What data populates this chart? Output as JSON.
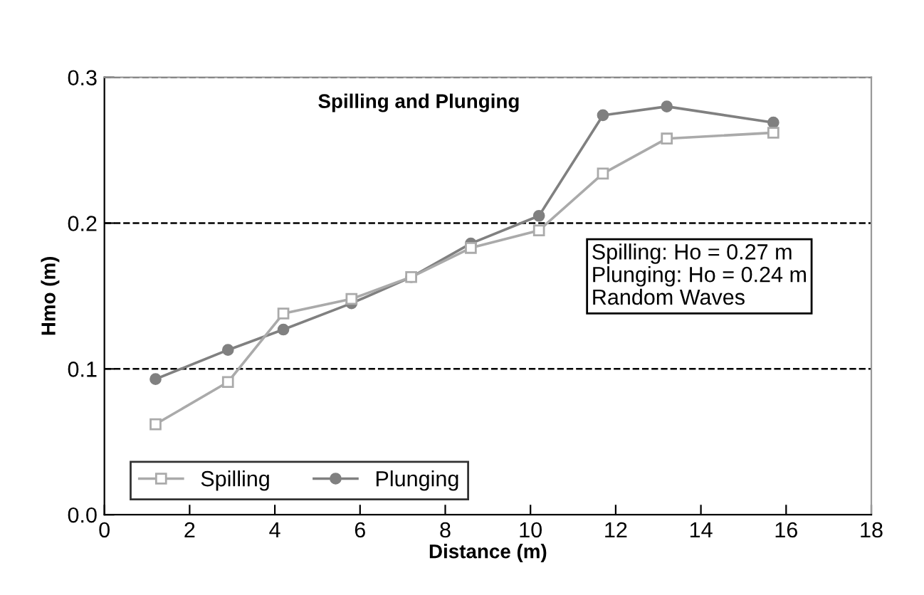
{
  "chart_data": {
    "type": "line",
    "title": "Spilling and Plunging",
    "xlabel": "Distance (m)",
    "ylabel": "Hmo (m)",
    "x": [
      1.2,
      2.9,
      4.2,
      5.8,
      7.2,
      8.6,
      10.2,
      11.7,
      13.2,
      15.7
    ],
    "series": [
      {
        "name": "Spilling",
        "color": "#aaaaaa",
        "marker": "square",
        "values": [
          0.062,
          0.091,
          0.138,
          0.148,
          0.163,
          0.183,
          0.195,
          0.234,
          0.258,
          0.262
        ]
      },
      {
        "name": "Plunging",
        "color": "#808080",
        "marker": "circle",
        "values": [
          0.093,
          0.113,
          0.127,
          0.145,
          0.163,
          0.186,
          0.205,
          0.274,
          0.28,
          0.269
        ]
      }
    ],
    "xlim": [
      0,
      18
    ],
    "xticks": [
      0,
      2,
      4,
      6,
      8,
      10,
      12,
      14,
      16,
      18
    ],
    "ylim": [
      0,
      0.3
    ],
    "yticks": [
      {
        "value": 0,
        "label": "0.0"
      },
      0.1,
      0.2,
      0.3
    ],
    "grid": "y",
    "legend": "bottom left",
    "annotations": [
      "Spilling: Ho = 0.27 m\nPlunging: Ho = 0.24 m\nRandom Waves"
    ]
  }
}
